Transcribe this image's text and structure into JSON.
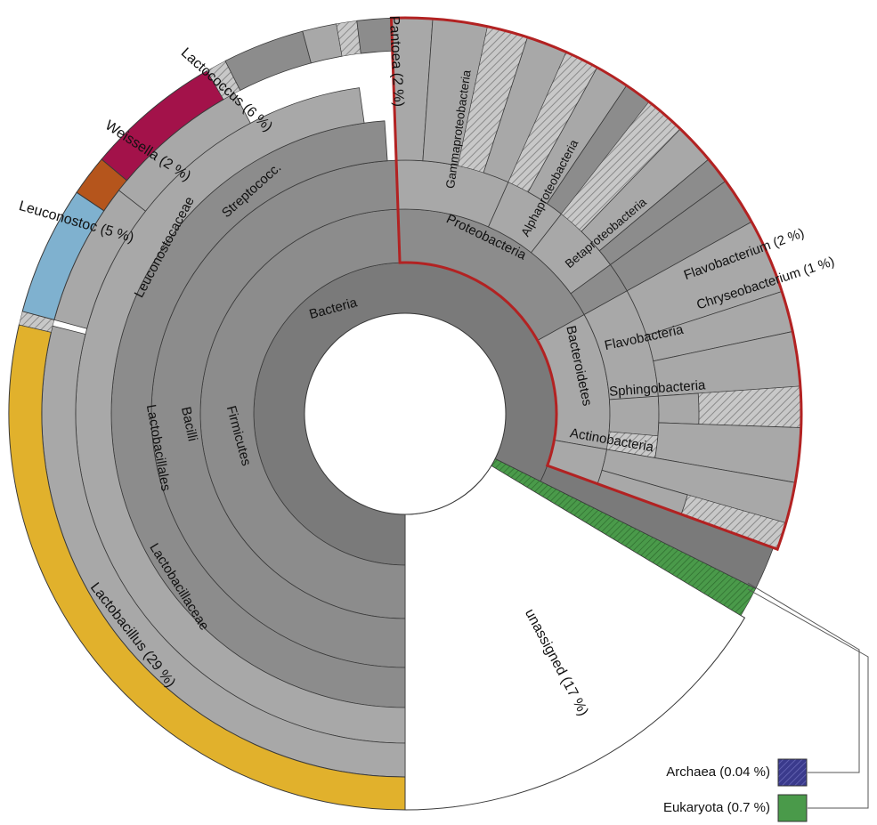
{
  "chart_data": {
    "type": "sunburst",
    "colors": {
      "ring_dark": "#7a7a7a",
      "ring_mid": "#8c8c8c",
      "ring_light": "#a8a8a8",
      "stroke": "#3a3a3a",
      "highlight_border": "#b22222",
      "lactobacillus": "#e1b12c",
      "leuconostoc": "#7fb1cf",
      "weissella": "#b5551c",
      "lactococcus": "#a3124a",
      "archaea": "#3a3a8c",
      "eukaryota": "#4a9a4a",
      "unassigned": "#ffffff"
    },
    "labels": {
      "bacteria": "Bacteria",
      "firmicutes": "Firmicutes",
      "bacilli": "Bacilli",
      "lactobacillales": "Lactobacillales",
      "lactobacillaceae": "Lactobacillaceae",
      "lactobacillus": "Lactobacillus (29 %)",
      "leuconostocaceae": "Leuconostocaceae",
      "leuconostoc": "Leuconostoc (5 %)",
      "weissella": "Weissella (2 %)",
      "lactococcus": "Lactococcus (6 %)",
      "streptococc": "Streptococc.",
      "proteobacteria": "Proteobacteria",
      "gammaproteobacteria": "Gammaproteobacteria",
      "pantoea": "Pantoea (2 %)",
      "alphaproteobacteria": "Alphaproteobacteria",
      "betaproteobacteria": "Betaproteobacteria",
      "bacteroidetes": "Bacteroidetes",
      "flavobacteria": "Flavobacteria",
      "flavobacterium": "Flavobacterium (2 %)",
      "chryseobacterium": "Chryseobacterium (1 %)",
      "sphingobacteria": "Sphingobacteria",
      "actinobacteria": "Actinobacteria",
      "unassigned": "unassigned (17 %)"
    },
    "legend": [
      {
        "label": "Archaea (0.04 %)",
        "color": "#3a3a8c"
      },
      {
        "label": "Eukaryota (0.7 %)",
        "color": "#4a9a4a"
      }
    ]
  }
}
